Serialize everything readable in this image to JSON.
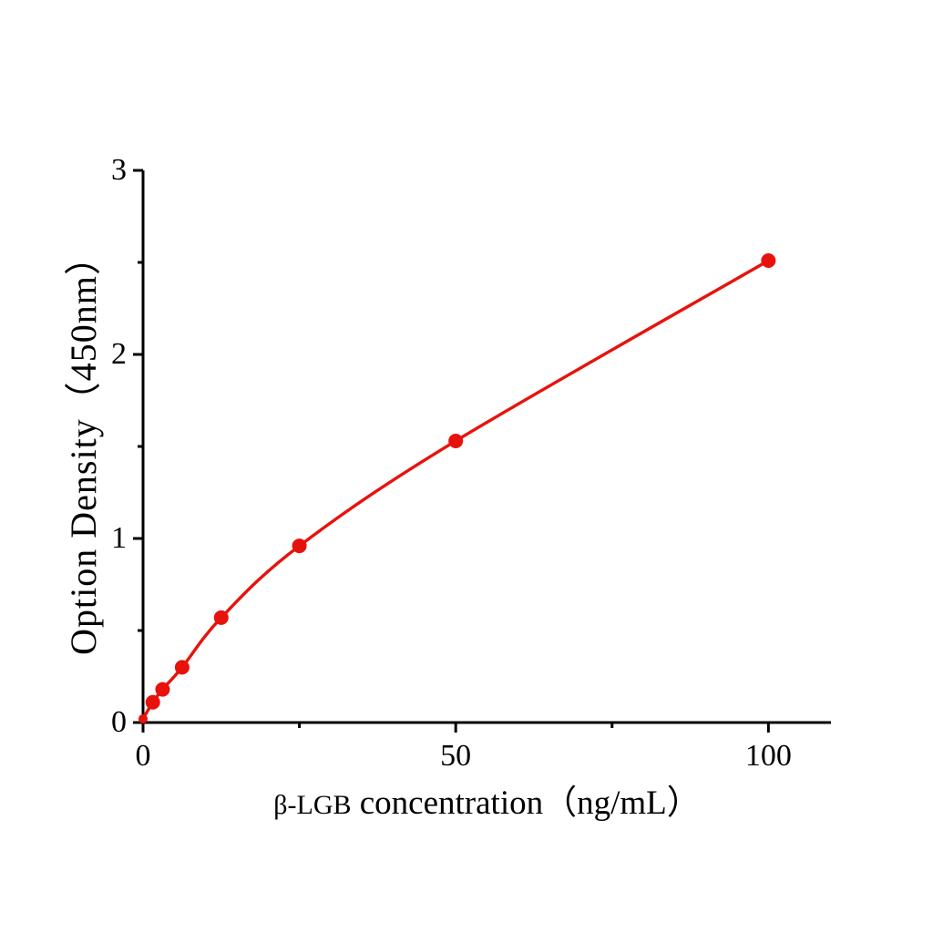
{
  "chart_data": {
    "type": "line",
    "title": "",
    "ylabel": "Option Density（450nm）",
    "xlabel_prefix": "β-LGB",
    "xlabel_main": " concentration（ng/mL）",
    "x": [
      0,
      1.5625,
      3.125,
      6.25,
      12.5,
      25,
      50,
      100
    ],
    "y": [
      0.02,
      0.11,
      0.18,
      0.3,
      0.57,
      0.96,
      1.53,
      2.51
    ],
    "xlim": [
      0,
      110
    ],
    "ylim": [
      0,
      3
    ],
    "x_major_ticks": [
      0,
      50,
      100
    ],
    "x_minor_ticks": [
      25,
      75
    ],
    "y_major_ticks": [
      0,
      1,
      2,
      3
    ],
    "y_minor_ticks": [
      0.5,
      1.5,
      2.5
    ],
    "x_tick_labels": [
      "0",
      "50",
      "100"
    ],
    "y_tick_labels": [
      "0",
      "1",
      "2",
      "3"
    ],
    "curve_color": "#e8120c",
    "axis_color": "#000000",
    "marker_radius": 8,
    "first_marker_radius": 5,
    "legend": "none",
    "grid": "off"
  }
}
